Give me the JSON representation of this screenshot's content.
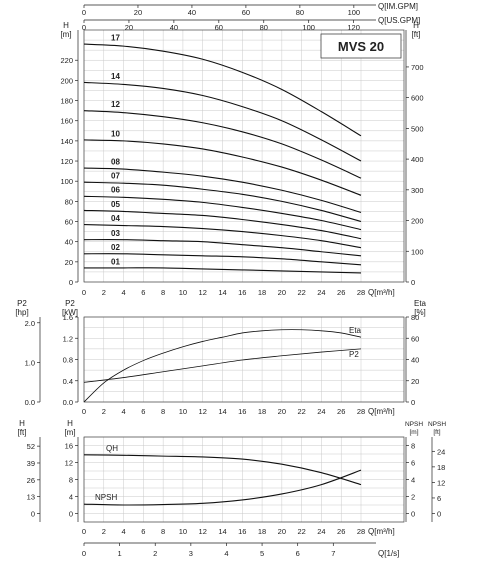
{
  "chart_data": [
    {
      "type": "line",
      "title": "MVS 20",
      "x_axis_bottom": {
        "label": "Q[m³/h]",
        "ticks": [
          0,
          2,
          4,
          6,
          8,
          10,
          12,
          14,
          16,
          18,
          20,
          22,
          24,
          26,
          28
        ]
      },
      "x_axis_top_1": {
        "label": "Q[US.GPM]",
        "ticks": [
          0,
          20,
          40,
          60,
          80,
          100,
          120
        ]
      },
      "x_axis_top_2": {
        "label": "Q[IM.GPM]",
        "ticks": [
          0,
          20,
          40,
          60,
          80,
          100
        ]
      },
      "y_axis_left": {
        "label": "H",
        "unit": "[m]",
        "ylim": [
          0,
          250
        ],
        "ticks": [
          0,
          20,
          40,
          60,
          80,
          100,
          120,
          140,
          160,
          180,
          200,
          220
        ]
      },
      "y_axis_right": {
        "label": "H",
        "unit": "[ft]",
        "ticks": [
          0,
          100,
          200,
          300,
          400,
          500,
          600,
          700
        ]
      },
      "series": [
        {
          "name": "17",
          "x": [
            0,
            4,
            8,
            12,
            16,
            20,
            24,
            28
          ],
          "y": [
            236,
            234,
            229,
            221,
            208,
            191,
            169,
            145
          ]
        },
        {
          "name": "14",
          "x": [
            0,
            4,
            8,
            12,
            16,
            20,
            24,
            28
          ],
          "y": [
            198,
            196,
            192,
            185,
            174,
            160,
            141,
            120
          ]
        },
        {
          "name": "12",
          "x": [
            0,
            4,
            8,
            12,
            16,
            20,
            24,
            28
          ],
          "y": [
            170,
            168,
            164,
            158,
            149,
            137,
            121,
            103
          ]
        },
        {
          "name": "10",
          "x": [
            0,
            4,
            8,
            12,
            16,
            20,
            24,
            28
          ],
          "y": [
            141,
            140,
            137,
            132,
            124,
            114,
            101,
            86
          ]
        },
        {
          "name": "08",
          "x": [
            0,
            4,
            8,
            12,
            16,
            20,
            24,
            28
          ],
          "y": [
            113,
            112,
            109,
            105,
            99,
            91,
            81,
            69
          ]
        },
        {
          "name": "07",
          "x": [
            0,
            4,
            8,
            12,
            16,
            20,
            24,
            28
          ],
          "y": [
            99,
            98,
            96,
            92,
            87,
            80,
            71,
            60
          ]
        },
        {
          "name": "06",
          "x": [
            0,
            4,
            8,
            12,
            16,
            20,
            24,
            28
          ],
          "y": [
            85,
            84,
            82,
            79,
            74,
            68,
            61,
            52
          ]
        },
        {
          "name": "05",
          "x": [
            0,
            4,
            8,
            12,
            16,
            20,
            24,
            28
          ],
          "y": [
            71,
            70,
            68,
            66,
            62,
            57,
            51,
            43
          ]
        },
        {
          "name": "04",
          "x": [
            0,
            4,
            8,
            12,
            16,
            20,
            24,
            28
          ],
          "y": [
            57,
            56,
            55,
            53,
            50,
            46,
            41,
            34
          ]
        },
        {
          "name": "03",
          "x": [
            0,
            4,
            8,
            12,
            16,
            20,
            24,
            28
          ],
          "y": [
            42,
            42,
            41,
            40,
            37,
            34,
            30,
            26
          ]
        },
        {
          "name": "02",
          "x": [
            0,
            4,
            8,
            12,
            16,
            20,
            24,
            28
          ],
          "y": [
            28,
            28,
            27,
            26,
            25,
            23,
            20,
            17
          ]
        },
        {
          "name": "01",
          "x": [
            0,
            4,
            8,
            12,
            16,
            20,
            24,
            28
          ],
          "y": [
            14,
            14,
            14,
            13,
            12,
            11,
            10,
            9
          ]
        }
      ]
    },
    {
      "type": "line",
      "x_axis_bottom": {
        "label": "Q[m³/h]",
        "ticks": [
          0,
          2,
          4,
          6,
          8,
          10,
          12,
          14,
          16,
          18,
          20,
          22,
          24,
          26,
          28
        ]
      },
      "y_axis_left_outer": {
        "label": "P2",
        "unit": "[hp]",
        "ticks": [
          "0.0",
          "1.0",
          "2.0"
        ]
      },
      "y_axis_left": {
        "label": "P2",
        "unit": "[kW]",
        "ylim": [
          0,
          1.6
        ],
        "ticks": [
          "0.0",
          "0.4",
          "0.8",
          "1.2",
          "1.6"
        ]
      },
      "y_axis_right": {
        "label": "Eta",
        "unit": "[%]",
        "ylim": [
          0,
          80
        ],
        "ticks": [
          0,
          20,
          40,
          60,
          80
        ]
      },
      "series": [
        {
          "name": "Eta",
          "axis": "right",
          "x": [
            0,
            2,
            4,
            6,
            8,
            10,
            12,
            14,
            16,
            18,
            20,
            22,
            24,
            26,
            28
          ],
          "y": [
            0,
            18,
            30,
            39,
            46,
            52,
            57,
            61,
            65,
            67,
            68,
            68,
            67,
            65,
            61
          ]
        },
        {
          "name": "P2",
          "axis": "left",
          "x": [
            0,
            4,
            8,
            12,
            16,
            20,
            24,
            28
          ],
          "y": [
            0.37,
            0.46,
            0.57,
            0.68,
            0.79,
            0.87,
            0.94,
            1.0
          ]
        }
      ]
    },
    {
      "type": "line",
      "x_axis_bottom": {
        "label": "Q[m³/h]",
        "ticks": [
          0,
          2,
          4,
          6,
          8,
          10,
          12,
          14,
          16,
          18,
          20,
          22,
          24,
          26,
          28
        ]
      },
      "x_axis_bottom_2": {
        "label": "Q[1/s]",
        "ticks": [
          0,
          1,
          2,
          3,
          4,
          5,
          6,
          7
        ]
      },
      "y_axis_left_outer": {
        "label": "H",
        "unit": "[ft]",
        "ticks": [
          0,
          13,
          26,
          39,
          52
        ]
      },
      "y_axis_left": {
        "label": "H",
        "unit": "[m]",
        "ylim": [
          -2,
          18
        ],
        "ticks": [
          0,
          4,
          8,
          12,
          16
        ]
      },
      "y_axis_right": {
        "label": "NPSH",
        "unit": "[m]",
        "ylim": [
          -1,
          9
        ],
        "ticks": [
          0,
          2,
          4,
          6,
          8
        ]
      },
      "y_axis_right_outer": {
        "label": "NPSH",
        "unit": "[ft]",
        "ticks": [
          0,
          6,
          12,
          18,
          24
        ]
      },
      "series": [
        {
          "name": "QH",
          "axis": "left",
          "x": [
            0,
            4,
            8,
            12,
            16,
            20,
            24,
            28
          ],
          "y": [
            13.8,
            13.7,
            13.5,
            13.3,
            12.8,
            11.6,
            9.6,
            6.8
          ]
        },
        {
          "name": "NPSH",
          "axis": "right",
          "x": [
            0,
            4,
            8,
            12,
            16,
            20,
            24,
            28
          ],
          "y": [
            1.1,
            1.0,
            1.05,
            1.2,
            1.6,
            2.3,
            3.4,
            5.1
          ]
        }
      ]
    }
  ]
}
